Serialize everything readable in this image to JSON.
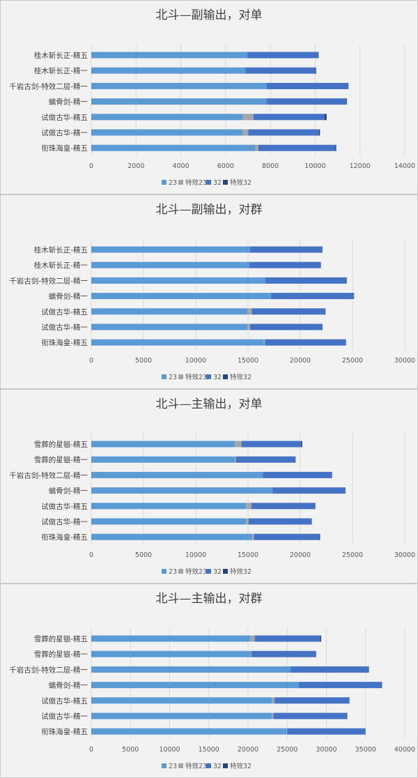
{
  "series_colors": {
    "23": "#5b9bd5",
    "特效23": "#a5a5a5",
    "32": "#4472c4",
    "特效32": "#264478"
  },
  "chart_data": [
    {
      "type": "bar",
      "orientation": "horizontal",
      "stacked": true,
      "title": "北斗—副输出，对单",
      "categories": [
        "桂木斩长正-精五",
        "桂木斩长正-精一",
        "千岩古剑-特效二层-精一",
        "螭骨剑-精一",
        "试做古华-精五",
        "试做古华-精一",
        "衔珠海皇-精五"
      ],
      "xlim": [
        0,
        14000
      ],
      "xticks": [
        "0",
        "2000",
        "4000",
        "6000",
        "8000",
        "10000",
        "12000",
        "14000"
      ],
      "legend_position": "bottom",
      "grid": true,
      "series": [
        {
          "name": "23",
          "values": [
            6970,
            6890,
            7840,
            7820,
            6770,
            6770,
            7330
          ]
        },
        {
          "name": "特效23",
          "values": [
            0,
            0,
            0,
            0,
            480,
            240,
            130
          ]
        },
        {
          "name": "32",
          "values": [
            3185,
            3160,
            3650,
            3600,
            3160,
            3160,
            3445
          ]
        },
        {
          "name": "特效32",
          "values": [
            0,
            0,
            0,
            0,
            100,
            45,
            35
          ]
        }
      ]
    },
    {
      "type": "bar",
      "orientation": "horizontal",
      "stacked": true,
      "title": "北斗—副输出，对群",
      "categories": [
        "桂木斩长正-精五",
        "桂木斩长正-精一",
        "千岩古剑-特效二层-精一",
        "螭骨剑-精一",
        "试做古华-精五",
        "试做古华-精一",
        "衔珠海皇-精五"
      ],
      "xlim": [
        0,
        30000
      ],
      "xticks": [
        "0",
        "5000",
        "10000",
        "15000",
        "20000",
        "25000",
        "30000"
      ],
      "legend_position": "bottom",
      "grid": true,
      "series": [
        {
          "name": "23",
          "values": [
            15190,
            15110,
            16670,
            17180,
            14930,
            14930,
            16520
          ]
        },
        {
          "name": "特效23",
          "values": [
            0,
            0,
            0,
            0,
            440,
            260,
            100
          ]
        },
        {
          "name": "32",
          "values": [
            6940,
            6870,
            7790,
            7970,
            6990,
            6940,
            7760
          ]
        },
        {
          "name": "特效32",
          "values": [
            0,
            0,
            0,
            0,
            50,
            0,
            0
          ]
        }
      ]
    },
    {
      "type": "bar",
      "orientation": "horizontal",
      "stacked": true,
      "title": "北斗—主输出，对单",
      "categories": [
        "雪葬的星银-精五",
        "雪葬的星银-精一",
        "千岩古剑-特效二层-精一",
        "螭骨剑-精一",
        "试做古华-精五",
        "试做古华-精一",
        "衔珠海皇-精五"
      ],
      "xlim": [
        0,
        30000
      ],
      "xticks": [
        "0",
        "5000",
        "10000",
        "15000",
        "20000",
        "25000",
        "30000"
      ],
      "legend_position": "bottom",
      "grid": true,
      "series": [
        {
          "name": "23",
          "values": [
            13740,
            13790,
            16420,
            17360,
            14810,
            14810,
            15420
          ]
        },
        {
          "name": "特效23",
          "values": [
            630,
            70,
            0,
            0,
            510,
            250,
            150
          ]
        },
        {
          "name": "32",
          "values": [
            5720,
            5700,
            6630,
            6970,
            6130,
            6050,
            6260
          ]
        },
        {
          "name": "特效32",
          "values": [
            100,
            0,
            0,
            0,
            0,
            0,
            70
          ]
        }
      ]
    },
    {
      "type": "bar",
      "orientation": "horizontal",
      "stacked": true,
      "title": "北斗—主输出，对群",
      "categories": [
        "雪葬的星银-精五",
        "雪葬的星银-精一",
        "千岩古剑-特效二层-精一",
        "螭骨剑-精一",
        "试做古华-精五",
        "试做古华-精一",
        "衔珠海皇-精五"
      ],
      "xlim": [
        0,
        40000
      ],
      "xticks": [
        "0",
        "5000",
        "10000",
        "15000",
        "20000",
        "25000",
        "30000",
        "35000",
        "40000"
      ],
      "legend_position": "bottom",
      "grid": true,
      "series": [
        {
          "name": "23",
          "values": [
            20260,
            20360,
            25430,
            26490,
            23050,
            23050,
            24890
          ]
        },
        {
          "name": "特效23",
          "values": [
            610,
            70,
            0,
            0,
            340,
            170,
            100
          ]
        },
        {
          "name": "32",
          "values": [
            8340,
            8270,
            10010,
            10620,
            9560,
            9460,
            10000
          ]
        },
        {
          "name": "特效32",
          "values": [
            130,
            0,
            0,
            0,
            0,
            0,
            0
          ]
        }
      ]
    }
  ]
}
